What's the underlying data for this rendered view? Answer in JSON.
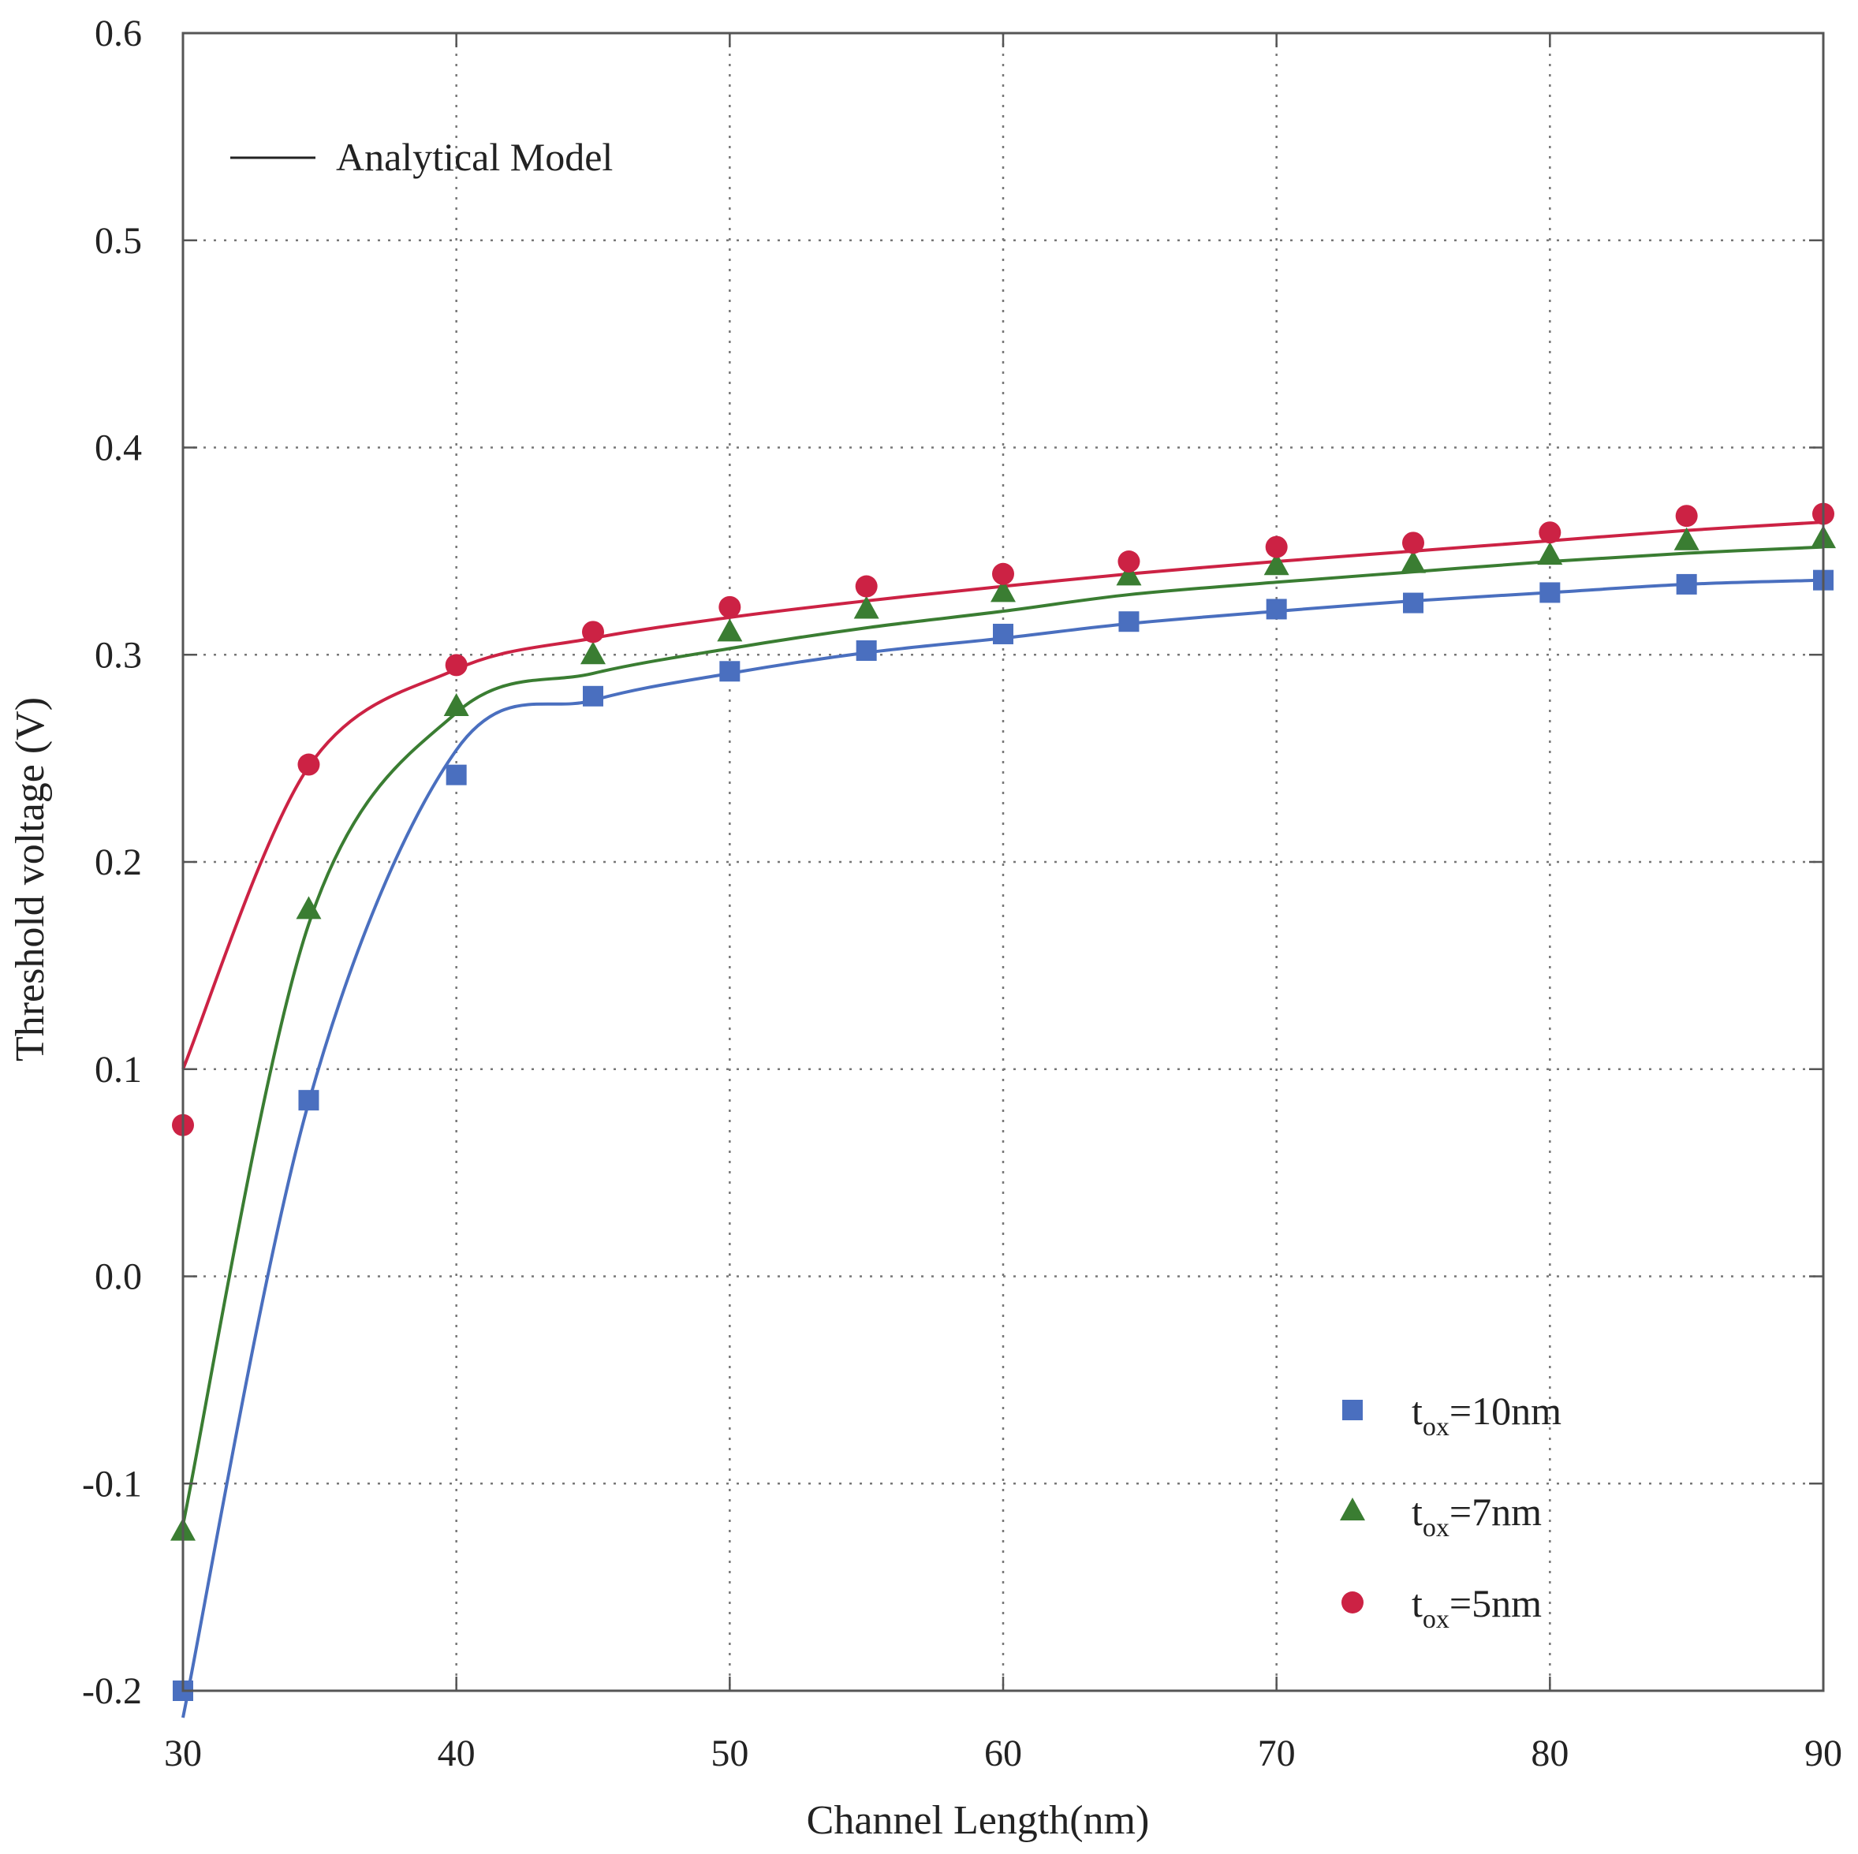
{
  "chart_data": {
    "type": "line",
    "title": "",
    "xlabel": "Channel Length(nm)",
    "ylabel": "Threshold voltage (V)",
    "xlim": [
      30,
      90
    ],
    "ylim": [
      -0.2,
      0.6
    ],
    "xticks": [
      30,
      40,
      50,
      60,
      70,
      80,
      90
    ],
    "xtick_labels": [
      "30",
      "40",
      "50",
      "60",
      "70",
      "80",
      "90"
    ],
    "yticks": [
      -0.2,
      -0.1,
      0.0,
      0.1,
      0.2,
      0.3,
      0.4,
      0.5,
      0.6
    ],
    "ytick_labels": [
      "-0.2",
      "-0.1",
      "0.0",
      "0.1",
      "0.2",
      "0.3",
      "0.4",
      "0.5",
      "0.6"
    ],
    "grid": true,
    "model_legend": {
      "label": "Analytical Model",
      "color": "#222222",
      "position": "top-left"
    },
    "legend_position": "bottom-right",
    "series": [
      {
        "name": "tox=10nm",
        "label_main": "t",
        "label_sub": "ox",
        "label_rest": "=10nm",
        "marker": "square",
        "color": "#4a6fbf",
        "x": [
          30,
          34.6,
          40,
          45,
          50,
          55,
          60,
          64.6,
          70,
          75,
          80,
          85,
          90
        ],
        "points": [
          -0.2,
          0.085,
          0.242,
          0.28,
          0.292,
          0.302,
          0.31,
          0.316,
          0.322,
          0.325,
          0.33,
          0.334,
          0.336
        ],
        "model": [
          -0.213,
          0.084,
          0.254,
          0.278,
          0.291,
          0.301,
          0.308,
          0.315,
          0.321,
          0.326,
          0.33,
          0.334,
          0.336
        ]
      },
      {
        "name": "tox=7nm",
        "label_main": "t",
        "label_sub": "ox",
        "label_rest": "=7nm",
        "marker": "triangle",
        "color": "#3a7d32",
        "x": [
          30,
          34.6,
          40,
          45,
          50,
          55,
          60,
          64.6,
          70,
          75,
          80,
          85,
          90
        ],
        "points": [
          -0.123,
          0.177,
          0.275,
          0.3,
          0.311,
          0.322,
          0.33,
          0.338,
          0.343,
          0.344,
          0.348,
          0.355,
          0.356
        ],
        "model": [
          -0.12,
          0.17,
          0.272,
          0.291,
          0.303,
          0.313,
          0.321,
          0.329,
          0.335,
          0.34,
          0.345,
          0.349,
          0.352
        ]
      },
      {
        "name": "tox=5nm",
        "label_main": "t",
        "label_sub": "ox",
        "label_rest": "=5nm",
        "marker": "circle",
        "color": "#cc2244",
        "x": [
          30,
          34.6,
          40,
          45,
          50,
          55,
          60,
          64.6,
          70,
          75,
          80,
          85,
          90
        ],
        "points": [
          0.073,
          0.247,
          0.295,
          0.311,
          0.323,
          0.333,
          0.339,
          0.345,
          0.352,
          0.354,
          0.359,
          0.367,
          0.368
        ],
        "model": [
          0.1,
          0.246,
          0.293,
          0.308,
          0.318,
          0.326,
          0.333,
          0.339,
          0.345,
          0.35,
          0.355,
          0.36,
          0.364
        ]
      }
    ]
  }
}
